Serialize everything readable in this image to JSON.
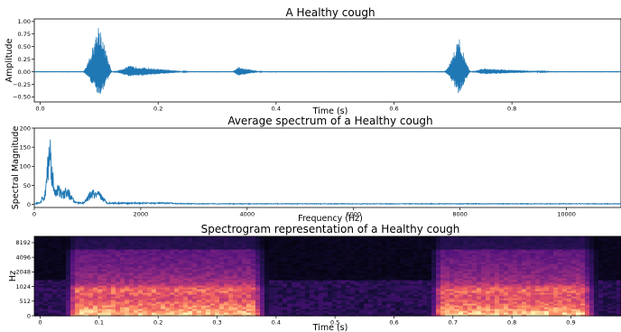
{
  "chart_data": [
    {
      "type": "line",
      "title": "A Healthy cough",
      "xlabel": "Time (s)",
      "ylabel": "Amplitude",
      "xlim": [
        -0.01,
        0.985
      ],
      "ylim": [
        -0.6,
        1.05
      ],
      "xticks": [
        0.0,
        0.2,
        0.4,
        0.6,
        0.8
      ],
      "xtick_labels": [
        "0.0",
        "0.2",
        "0.4",
        "0.6",
        "0.8"
      ],
      "yticks": [
        1.0,
        0.75,
        0.5,
        0.25,
        0.0,
        -0.25,
        -0.5
      ],
      "ytick_labels": [
        "1.00",
        "0.75",
        "0.50",
        "0.25",
        "0.00",
        "−0.25",
        "−0.50"
      ],
      "color": "#1f77b4",
      "events": [
        {
          "start": 0.072,
          "peak": 0.1,
          "end": 0.122,
          "max_amplitude": 1.0,
          "min_amplitude": -0.55
        },
        {
          "start": 0.122,
          "peak": 0.15,
          "end": 0.26,
          "max_amplitude": 0.12,
          "min_amplitude": -0.1
        },
        {
          "start": 0.325,
          "peak": 0.335,
          "end": 0.38,
          "max_amplitude": 0.1,
          "min_amplitude": -0.08
        },
        {
          "start": 0.685,
          "peak": 0.71,
          "end": 0.73,
          "max_amplitude": 0.7,
          "min_amplitude": -0.47
        },
        {
          "start": 0.73,
          "peak": 0.75,
          "end": 0.88,
          "max_amplitude": 0.07,
          "min_amplitude": -0.05
        }
      ]
    },
    {
      "type": "line",
      "title": "Average spectrum of a Healthy cough",
      "xlabel": "Frequency (Hz)",
      "ylabel": "Spectral Magnitude",
      "xlim": [
        0,
        11025
      ],
      "ylim": [
        -8,
        200
      ],
      "xticks": [
        0,
        2000,
        4000,
        6000,
        8000,
        10000
      ],
      "xtick_labels": [
        "0",
        "2000",
        "4000",
        "6000",
        "8000",
        "10000"
      ],
      "yticks": [
        200,
        150,
        100,
        50,
        0
      ],
      "ytick_labels": [
        "200",
        "150",
        "100",
        "50",
        "0"
      ],
      "color": "#1f77b4",
      "peaks": [
        {
          "x": 290,
          "y": 192
        },
        {
          "x": 430,
          "y": 55
        },
        {
          "x": 600,
          "y": 45
        },
        {
          "x": 1100,
          "y": 40
        },
        {
          "x": 1200,
          "y": 35
        }
      ]
    },
    {
      "type": "heatmap",
      "title": "Spectrogram representation of a Healthy cough",
      "xlabel": "Time (s)",
      "ylabel": "Hz",
      "xlim": [
        -0.01,
        0.985
      ],
      "xticks": [
        0,
        0.1,
        0.2,
        0.3,
        0.4,
        0.5,
        0.6,
        0.7,
        0.8,
        0.9
      ],
      "xtick_labels": [
        "0",
        "0.1",
        "0.2",
        "0.3",
        "0.4",
        "0.5",
        "0.6",
        "0.7",
        "0.8",
        "0.9"
      ],
      "yticks": [
        0,
        512,
        1024,
        2048,
        4096,
        8192
      ],
      "ytick_labels": [
        "0",
        "512",
        "1024",
        "2048",
        "4096",
        "8192"
      ],
      "y_scale": "symlog",
      "colormap": "magma",
      "high_energy_segments": [
        {
          "start": 0.04,
          "end": 0.39
        },
        {
          "start": 0.66,
          "end": 0.95
        }
      ]
    }
  ]
}
